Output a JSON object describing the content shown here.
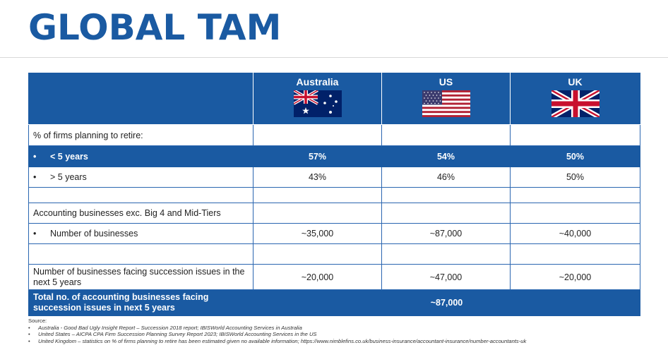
{
  "title": "GLOBAL TAM",
  "columns": [
    {
      "label": "Australia",
      "flag": "australia-flag-icon"
    },
    {
      "label": "US",
      "flag": "us-flag-icon"
    },
    {
      "label": "UK",
      "flag": "uk-flag-icon"
    }
  ],
  "rows": {
    "retire_heading": "% of firms planning to retire:",
    "lt5": {
      "bullet": "•",
      "label": "< 5 years",
      "values": [
        "57%",
        "54%",
        "50%"
      ]
    },
    "gt5": {
      "bullet": "•",
      "label": "> 5 years",
      "values": [
        "43%",
        "46%",
        "50%"
      ]
    },
    "acct_heading": "Accounting businesses exc. Big 4 and Mid-Tiers",
    "num_biz": {
      "bullet": "•",
      "label": "Number of businesses",
      "values": [
        "~35,000",
        "~87,000",
        "~40,000"
      ]
    },
    "succession": {
      "label": "Number of businesses facing succession issues in the next 5 years",
      "values": [
        "~20,000",
        "~47,000",
        "~20,000"
      ]
    },
    "total": {
      "label": "Total no. of accounting businesses facing succession issues in next 5 years",
      "value": "~87,000"
    }
  },
  "source": {
    "heading": "Source:",
    "items": [
      {
        "bullet": "•",
        "text": "Australia - Good Bad Ugly Insight Report – Succession 2018 report; IBISWorld Accounting Services in Australia"
      },
      {
        "bullet": "•",
        "text": "United States – AICPA CPA Firm Succession Planning Survey Report 2023; IBISWorld Accounting Services in the US"
      },
      {
        "bullet": "•",
        "text": "United Kingdom – statistics on % of firms planning to retire has been estimated given no available information; https://www.nimblefins.co.uk/business-insurance/accountant-insurance/number-accountants-uk"
      }
    ]
  },
  "colors": {
    "brand_blue": "#1a5aa2",
    "border_blue": "#2a66b0"
  }
}
